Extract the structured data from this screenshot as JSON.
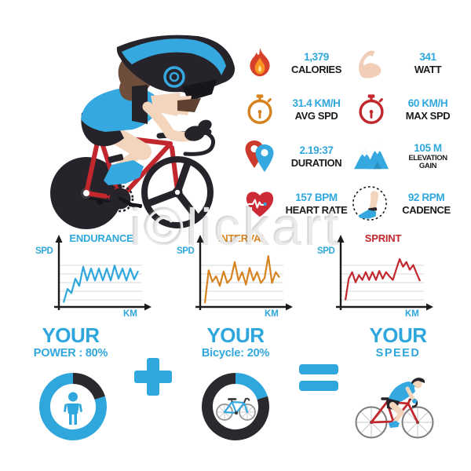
{
  "watermark": {
    "text": "i©lickart"
  },
  "colors": {
    "blue": "#2FA7DC",
    "dark": "#2B292D",
    "red": "#C1272D",
    "orange": "#D5821F",
    "skin": "#F3D5BD",
    "grid": "#D9D9D9",
    "axis": "#1B1B1B",
    "label_black": "#1B1B1B"
  },
  "stats": [
    {
      "id": "calories",
      "icon": "flame-icon",
      "value": "1,379",
      "label": "CALORIES"
    },
    {
      "id": "watt",
      "icon": "biceps-icon",
      "value": "341",
      "label": "WATT"
    },
    {
      "id": "avg-spd",
      "icon": "stopwatch-orange-icon",
      "value": "31.4 KM/H",
      "label": "AVG SPD"
    },
    {
      "id": "max-spd",
      "icon": "stopwatch-red-icon",
      "value": "60 KM/H",
      "label": "MAX SPD"
    },
    {
      "id": "duration",
      "icon": "map-pins-icon",
      "value": "2.19:37",
      "label": "DURATION"
    },
    {
      "id": "elevation",
      "icon": "mountains-icon",
      "value": "105 M",
      "label": "ELEVATION GAIN"
    },
    {
      "id": "heart-rate",
      "icon": "heart-icon",
      "value": "157 BPM",
      "label": "HEART RATE"
    },
    {
      "id": "cadence",
      "icon": "leg-icon",
      "value": "92 RPM",
      "label": "CADENCE"
    }
  ],
  "chart_data": [
    {
      "type": "line",
      "title": "ENDURANCE",
      "color": "#2FA7DC",
      "xlabel": "KM",
      "ylabel": "SPD",
      "ylim": [
        0,
        10
      ],
      "grid": true,
      "legend": "none",
      "values": [
        0.6,
        2.9,
        2.2,
        4.6,
        3.4,
        6.6,
        4.3,
        6.3,
        4.3,
        6.3,
        4.3,
        6.3,
        4.3,
        6.8,
        4.6,
        6.3,
        4.3,
        6.3,
        4.5,
        5.9
      ]
    },
    {
      "type": "line",
      "title": "INTERVAL",
      "color": "#D5821F",
      "xlabel": "KM",
      "ylabel": "SPD",
      "ylim": [
        0,
        10
      ],
      "grid": true,
      "legend": "none",
      "values": [
        0.5,
        6.0,
        4.1,
        5.0,
        3.4,
        5.8,
        3.9,
        4.6,
        7.4,
        4.3,
        5.7,
        3.6,
        6.4,
        4.3,
        5.7,
        3.9,
        4.7,
        8.4,
        3.9,
        5.7,
        4.8
      ]
    },
    {
      "type": "line",
      "title": "SPRINT",
      "color": "#C1272D",
      "xlabel": "KM",
      "ylabel": "SPD",
      "ylim": [
        0,
        10
      ],
      "grid": true,
      "legend": "none",
      "values": [
        1.0,
        4.6,
        5.7,
        4.0,
        5.2,
        4.4,
        5.7,
        4.4,
        5.7,
        4.4,
        5.9,
        4.6,
        5.7,
        5.0,
        4.4,
        6.2,
        7.9,
        6.6,
        7.4,
        6.1,
        6.9,
        5.5,
        4.2
      ]
    }
  ],
  "formula": {
    "power": {
      "title": "YOUR",
      "subtitle": "POWER : 80%",
      "pct": 80,
      "segments": [
        {
          "pct": 20,
          "color": "#2B292D"
        },
        {
          "pct": 80,
          "color": "#2FA7DC"
        }
      ]
    },
    "plus": "+",
    "bicycle": {
      "title": "YOUR",
      "subtitle": "Bicycle: 20%",
      "pct": 20,
      "segments": [
        {
          "pct": 20,
          "color": "#2FA7DC"
        },
        {
          "pct": 80,
          "color": "#2B292D"
        }
      ]
    },
    "equals": "=",
    "speed": {
      "title": "YOUR",
      "subtitle": "SPEED"
    }
  }
}
